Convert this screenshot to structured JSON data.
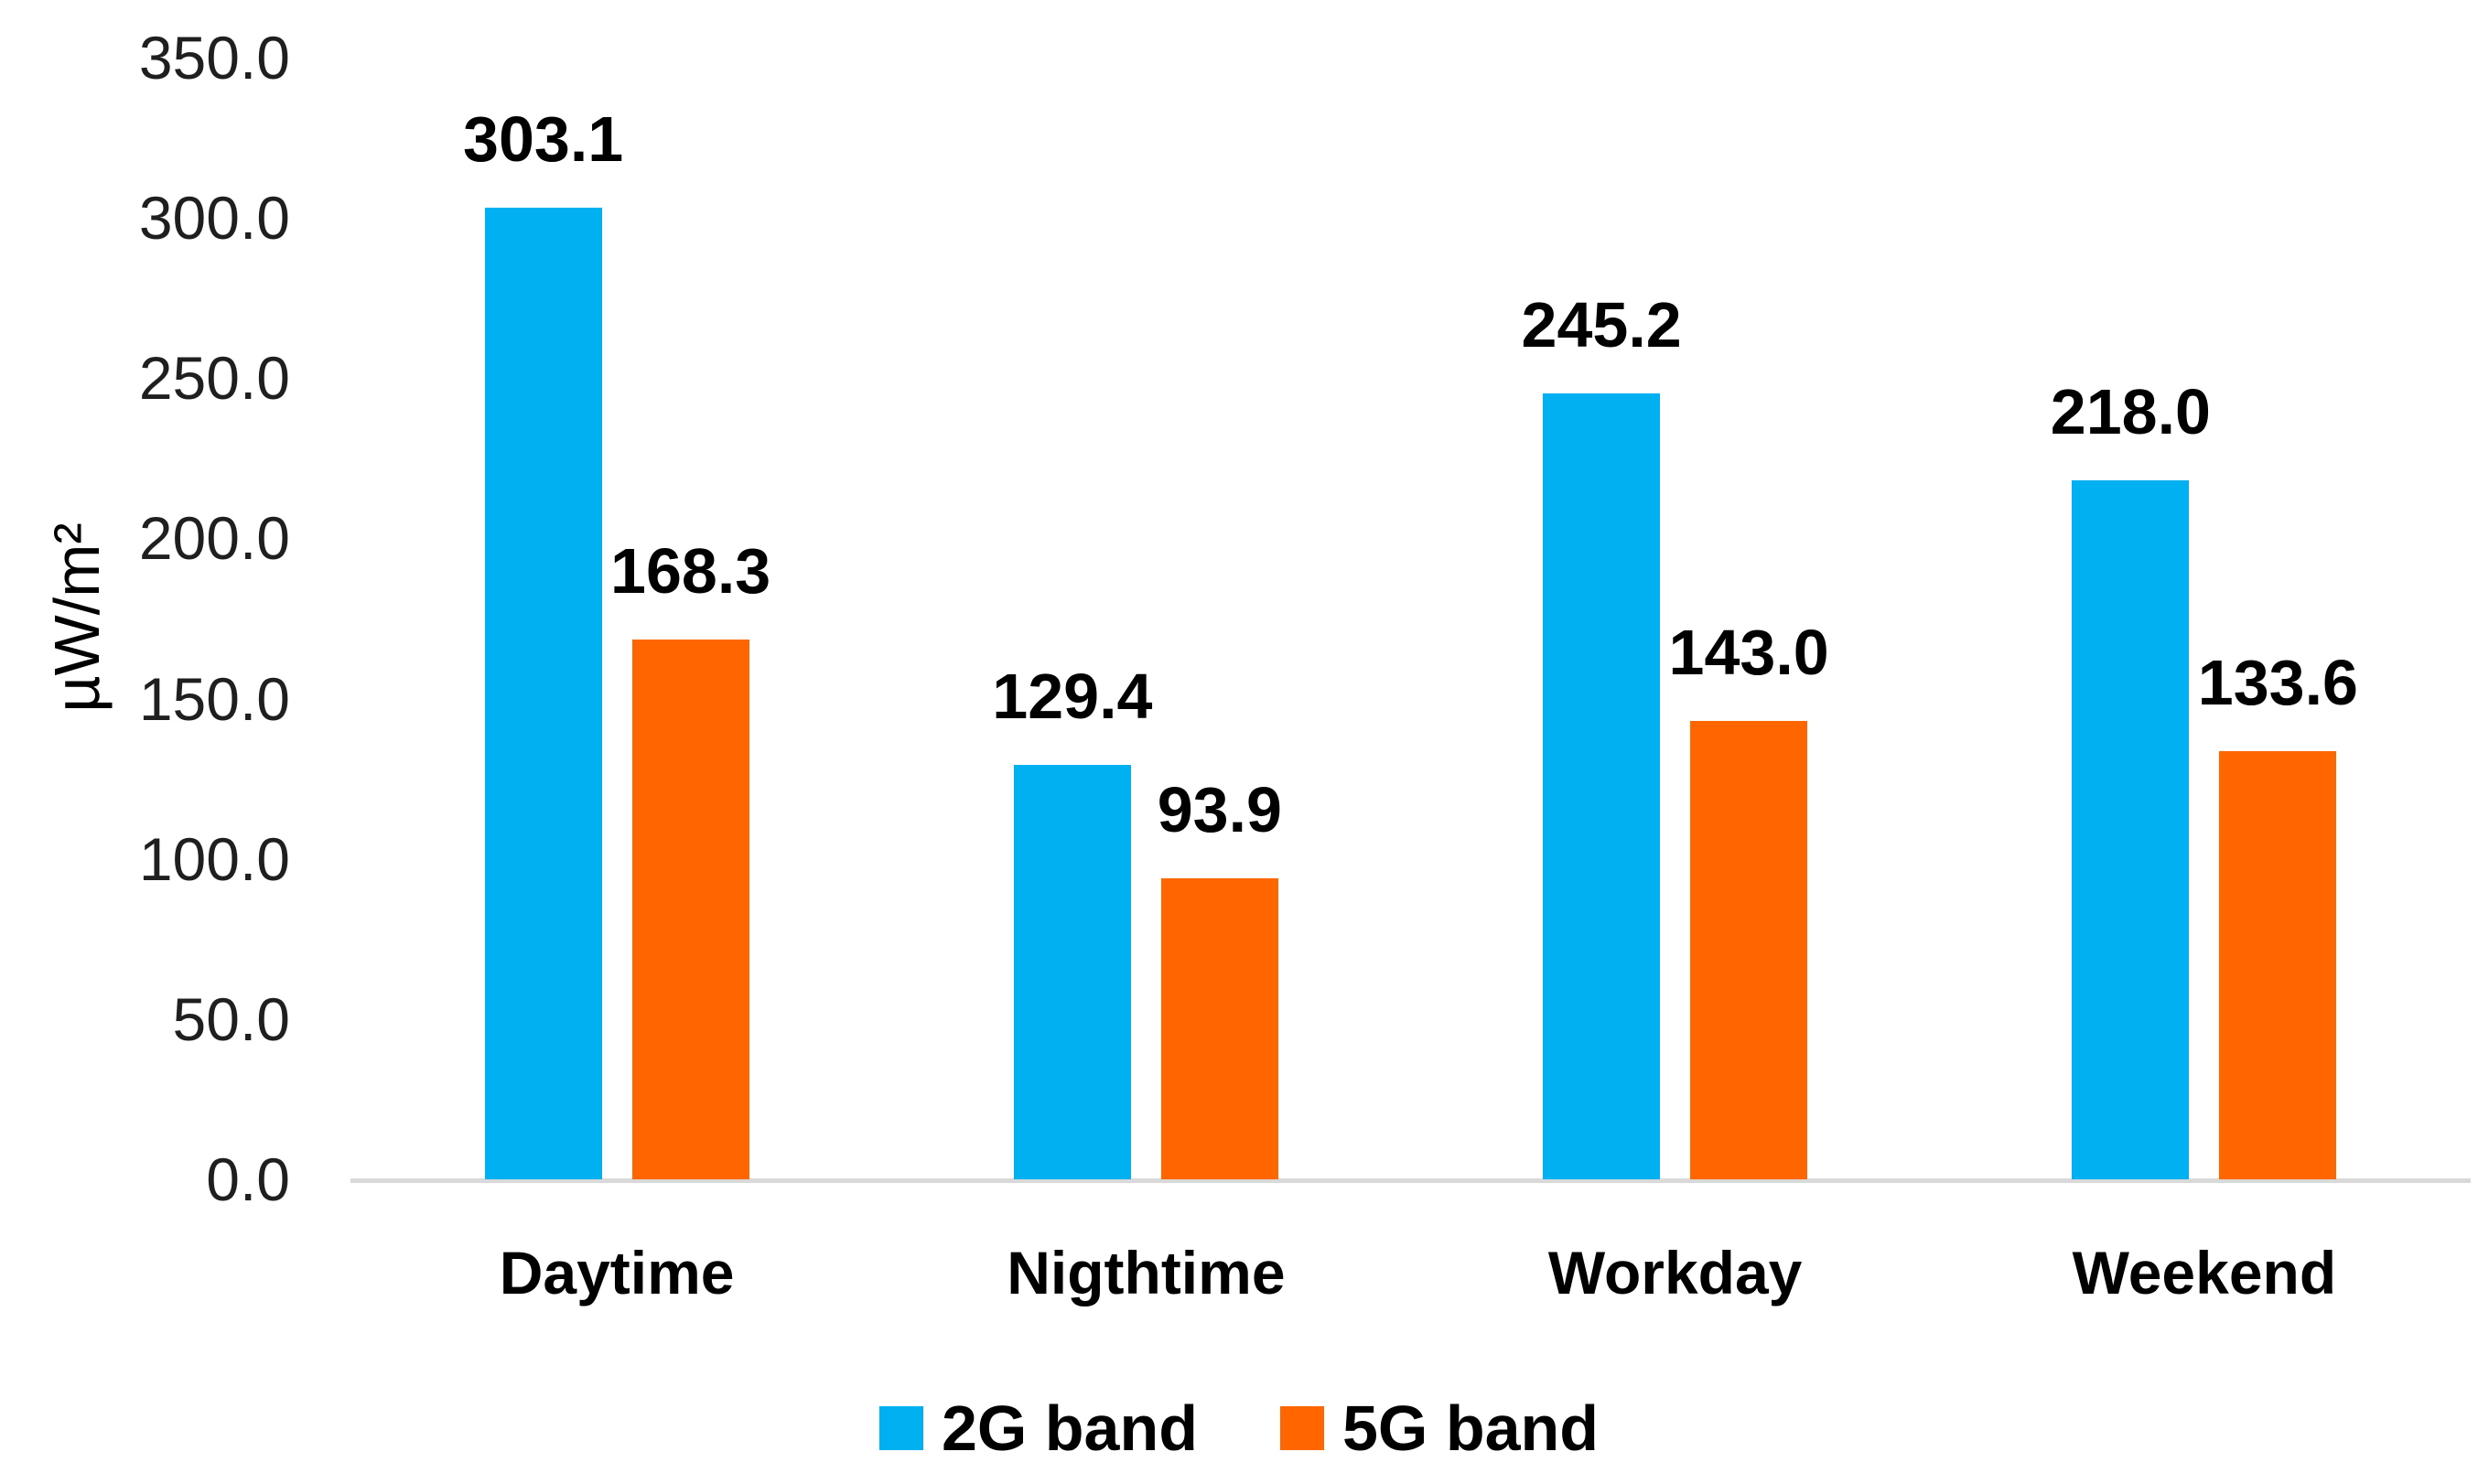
{
  "chart_data": {
    "type": "bar",
    "ylabel": "µW/m²",
    "ylim": [
      0,
      350
    ],
    "grid": false,
    "legend_position": "bottom",
    "categories": [
      "Daytime",
      "Nigthtime",
      "Workday",
      "Weekend"
    ],
    "yticks": [
      {
        "value": 0,
        "label": "0.0"
      },
      {
        "value": 50,
        "label": "50.0"
      },
      {
        "value": 100,
        "label": "100.0"
      },
      {
        "value": 150,
        "label": "150.0"
      },
      {
        "value": 200,
        "label": "200.0"
      },
      {
        "value": 250,
        "label": "250.0"
      },
      {
        "value": 300,
        "label": "300.0"
      },
      {
        "value": 350,
        "label": "350.0"
      }
    ],
    "series": [
      {
        "name": "2G band",
        "color": "#00B0F0",
        "values": [
          303.1,
          129.4,
          245.2,
          218.0
        ],
        "value_labels": [
          "303.1",
          "129.4",
          "245.2",
          "218.0"
        ]
      },
      {
        "name": "5G band",
        "color": "#FF6600",
        "values": [
          168.3,
          93.9,
          143.0,
          133.6
        ],
        "value_labels": [
          "168.3",
          "93.9",
          "143.0",
          "133.6"
        ]
      }
    ]
  }
}
